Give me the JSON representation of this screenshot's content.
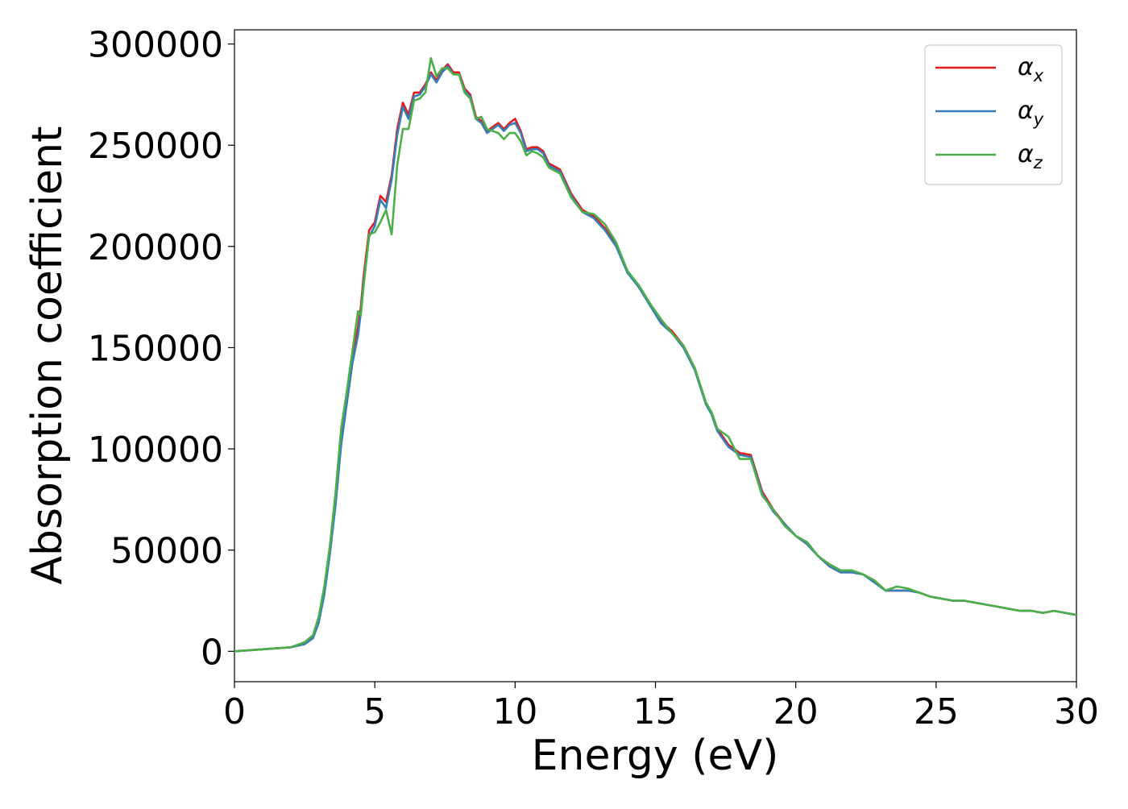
{
  "chart_data": {
    "type": "line",
    "title": "",
    "xlabel": "Energy (eV)",
    "ylabel": "Absorption coefficient",
    "xlim": [
      0,
      30
    ],
    "ylim": [
      -15000,
      307000
    ],
    "xticks": [
      0,
      5,
      10,
      15,
      20,
      25,
      30
    ],
    "xtick_labels": [
      "0",
      "5",
      "10",
      "15",
      "20",
      "25",
      "30"
    ],
    "yticks": [
      0,
      50000,
      100000,
      150000,
      200000,
      250000,
      300000
    ],
    "ytick_labels": [
      "0",
      "50000",
      "100000",
      "150000",
      "200000",
      "250000",
      "300000"
    ],
    "grid": false,
    "legend_position": "top-right",
    "series": [
      {
        "name": "αx",
        "symbol": "α",
        "subscript": "x",
        "color": "#e41a1c",
        "x": [
          0,
          1,
          2,
          2.5,
          2.8,
          3.0,
          3.2,
          3.4,
          3.6,
          3.8,
          4.0,
          4.2,
          4.4,
          4.5,
          4.6,
          4.8,
          5.0,
          5.2,
          5.4,
          5.6,
          5.8,
          6.0,
          6.2,
          6.4,
          6.6,
          6.8,
          7.0,
          7.2,
          7.4,
          7.6,
          7.8,
          8.0,
          8.2,
          8.4,
          8.6,
          8.8,
          9.0,
          9.2,
          9.4,
          9.6,
          9.8,
          10.0,
          10.2,
          10.4,
          10.6,
          10.8,
          11.0,
          11.2,
          11.6,
          12.0,
          12.4,
          12.8,
          13.2,
          13.6,
          14.0,
          14.4,
          14.8,
          15.2,
          15.6,
          16.0,
          16.4,
          16.8,
          17.0,
          17.2,
          17.6,
          18.0,
          18.4,
          18.8,
          19.2,
          19.6,
          20.0,
          20.4,
          20.8,
          21.2,
          21.6,
          22.0,
          22.4,
          22.8,
          23.2,
          23.6,
          24.0,
          24.4,
          24.8,
          25.2,
          25.6,
          26.0,
          26.4,
          26.8,
          27.2,
          27.6,
          28.0,
          28.4,
          28.8,
          29.2,
          29.6,
          30.0
        ],
        "y": [
          0,
          1000,
          2000,
          4000,
          7000,
          15000,
          30000,
          50000,
          75000,
          105000,
          125000,
          145000,
          160000,
          170000,
          185000,
          208000,
          212000,
          225000,
          222000,
          235000,
          258000,
          271000,
          265000,
          276000,
          276000,
          280000,
          286000,
          282000,
          287000,
          290000,
          286000,
          286000,
          278000,
          275000,
          264000,
          262000,
          257000,
          259000,
          261000,
          258000,
          261000,
          263000,
          257000,
          248000,
          249000,
          249000,
          247000,
          241000,
          238000,
          226000,
          218000,
          215000,
          209000,
          201000,
          188000,
          180000,
          172000,
          163000,
          158000,
          151000,
          140000,
          122000,
          118000,
          110000,
          102000,
          98000,
          97000,
          79000,
          70000,
          63000,
          57000,
          53000,
          47000,
          42000,
          39000,
          39000,
          38000,
          35000,
          30000,
          30000,
          30000,
          29000,
          27000,
          26000,
          25000,
          25000,
          24000,
          23000,
          22000,
          21000,
          20000,
          20000,
          19000,
          20000,
          19000,
          18000
        ]
      },
      {
        "name": "αy",
        "symbol": "α",
        "subscript": "y",
        "color": "#377eb8",
        "x": [
          0,
          1,
          2,
          2.5,
          2.8,
          3.0,
          3.2,
          3.4,
          3.6,
          3.8,
          4.0,
          4.2,
          4.4,
          4.5,
          4.6,
          4.8,
          5.0,
          5.2,
          5.4,
          5.6,
          5.8,
          6.0,
          6.2,
          6.4,
          6.6,
          6.8,
          7.0,
          7.2,
          7.4,
          7.6,
          7.8,
          8.0,
          8.2,
          8.4,
          8.6,
          8.8,
          9.0,
          9.2,
          9.4,
          9.6,
          9.8,
          10.0,
          10.2,
          10.4,
          10.6,
          10.8,
          11.0,
          11.2,
          11.6,
          12.0,
          12.4,
          12.8,
          13.2,
          13.6,
          14.0,
          14.4,
          14.8,
          15.2,
          15.6,
          16.0,
          16.4,
          16.8,
          17.0,
          17.2,
          17.6,
          18.0,
          18.4,
          18.8,
          19.2,
          19.6,
          20.0,
          20.4,
          20.8,
          21.2,
          21.6,
          22.0,
          22.4,
          22.8,
          23.2,
          23.6,
          24.0,
          24.4,
          24.8,
          25.2,
          25.6,
          26.0,
          26.4,
          26.8,
          27.2,
          27.6,
          28.0,
          28.4,
          28.8,
          29.2,
          29.6,
          30.0
        ],
        "y": [
          0,
          1000,
          2000,
          3500,
          6500,
          14000,
          28000,
          48000,
          72000,
          102000,
          122000,
          142000,
          156000,
          167000,
          182000,
          205000,
          210000,
          223000,
          219000,
          233000,
          255000,
          269000,
          263000,
          274000,
          275000,
          279000,
          285000,
          281000,
          286000,
          289000,
          285000,
          285000,
          277000,
          274000,
          263000,
          261000,
          256000,
          258000,
          260000,
          257000,
          260000,
          261000,
          256000,
          247000,
          248000,
          248000,
          246000,
          240000,
          237000,
          225000,
          217000,
          214000,
          208000,
          200000,
          187000,
          180000,
          171000,
          162000,
          157000,
          150000,
          139000,
          122000,
          117000,
          109000,
          101000,
          97000,
          96000,
          78000,
          69000,
          63000,
          57000,
          53000,
          47000,
          42000,
          39000,
          39000,
          38000,
          34000,
          30000,
          30000,
          30000,
          29000,
          27000,
          26000,
          25000,
          25000,
          24000,
          23000,
          22000,
          21000,
          20000,
          20000,
          19000,
          20000,
          19000,
          18000
        ]
      },
      {
        "name": "αz",
        "symbol": "α",
        "subscript": "z",
        "color": "#4daf4a",
        "x": [
          0,
          1,
          2,
          2.5,
          2.8,
          3.0,
          3.2,
          3.4,
          3.6,
          3.8,
          4.0,
          4.2,
          4.4,
          4.5,
          4.6,
          4.8,
          5.0,
          5.2,
          5.4,
          5.6,
          5.8,
          6.0,
          6.2,
          6.4,
          6.6,
          6.8,
          7.0,
          7.2,
          7.4,
          7.6,
          7.8,
          8.0,
          8.2,
          8.4,
          8.6,
          8.8,
          9.0,
          9.2,
          9.4,
          9.6,
          9.8,
          10.0,
          10.2,
          10.4,
          10.6,
          10.8,
          11.0,
          11.2,
          11.6,
          12.0,
          12.4,
          12.8,
          13.2,
          13.6,
          14.0,
          14.4,
          14.8,
          15.2,
          15.6,
          16.0,
          16.4,
          16.8,
          17.0,
          17.2,
          17.6,
          18.0,
          18.4,
          18.8,
          19.2,
          19.6,
          20.0,
          20.4,
          20.8,
          21.2,
          21.6,
          22.0,
          22.4,
          22.8,
          23.2,
          23.6,
          24.0,
          24.4,
          24.8,
          25.2,
          25.6,
          26.0,
          26.4,
          26.8,
          27.2,
          27.6,
          28.0,
          28.4,
          28.8,
          29.2,
          29.6,
          30.0
        ],
        "y": [
          0,
          1000,
          2000,
          4500,
          8000,
          17000,
          32000,
          52000,
          78000,
          110000,
          128000,
          148000,
          168000,
          166000,
          180000,
          206000,
          207000,
          212000,
          218000,
          206000,
          240000,
          258000,
          258000,
          272000,
          273000,
          276000,
          293000,
          284000,
          288000,
          288000,
          285000,
          285000,
          276000,
          273000,
          263000,
          264000,
          258000,
          257000,
          256000,
          253000,
          256000,
          256000,
          252000,
          245000,
          247000,
          246000,
          244000,
          239000,
          236000,
          224000,
          217000,
          216000,
          211000,
          202000,
          188000,
          181000,
          172000,
          164000,
          157000,
          151000,
          140000,
          123000,
          118000,
          110000,
          106000,
          95000,
          95000,
          77000,
          70000,
          62000,
          57000,
          54000,
          47000,
          43000,
          40000,
          40000,
          38000,
          35000,
          30000,
          32000,
          31000,
          29000,
          27000,
          26000,
          25000,
          25000,
          24000,
          23000,
          22000,
          21000,
          20000,
          20000,
          19000,
          20000,
          19000,
          18000
        ]
      }
    ]
  }
}
